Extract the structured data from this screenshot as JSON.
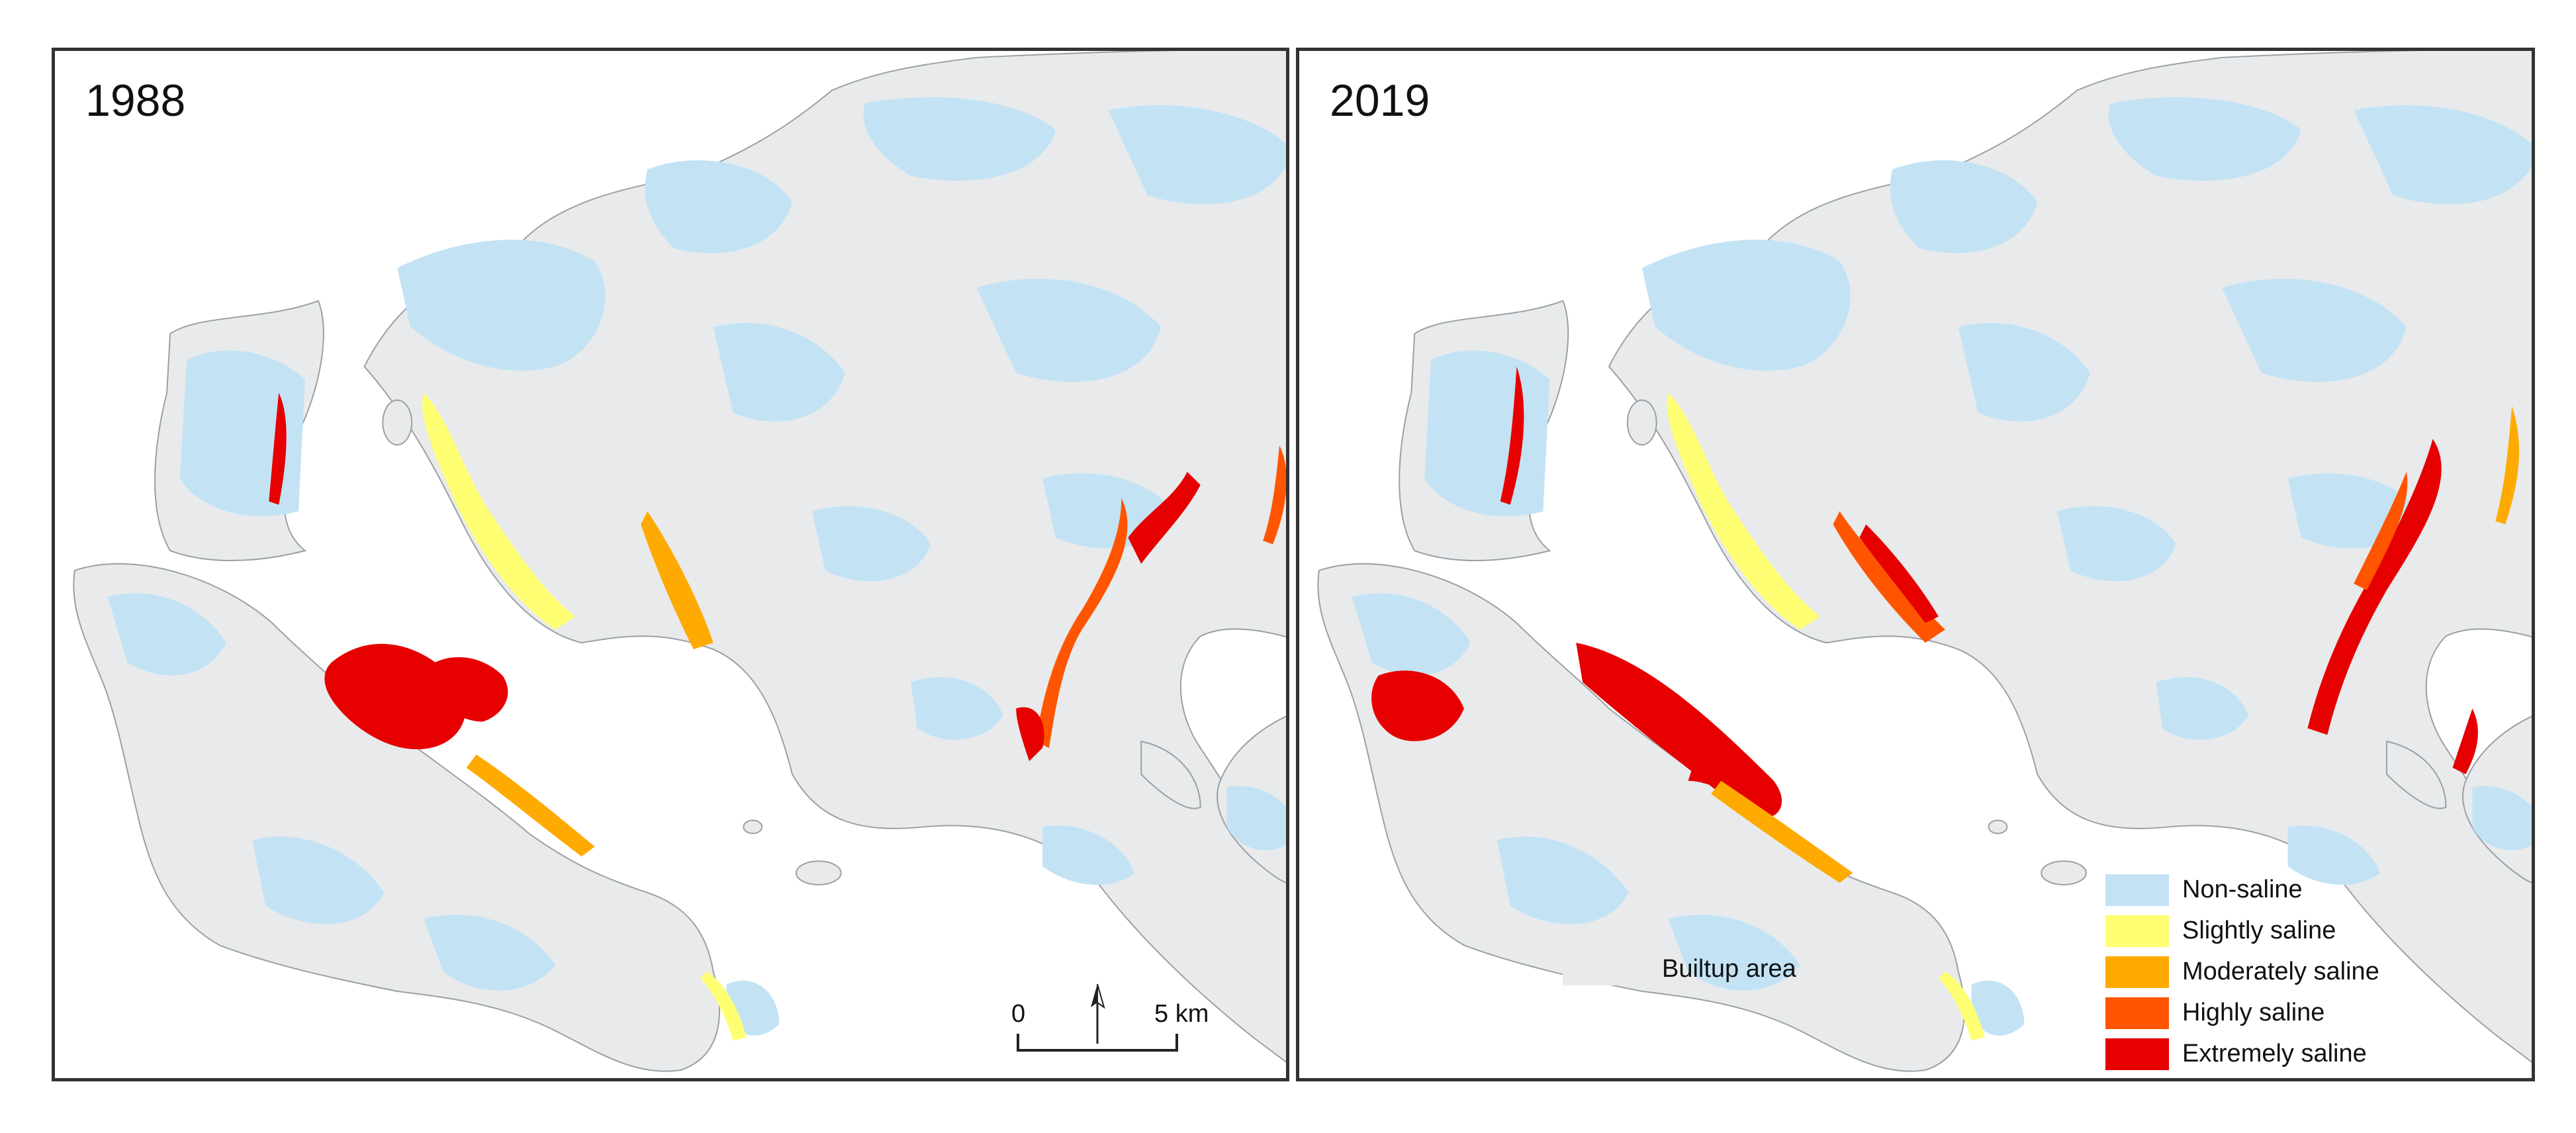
{
  "panels": [
    {
      "year": "1988",
      "scale": {
        "start": "0",
        "end": "5 km"
      }
    },
    {
      "year": "2019"
    }
  ],
  "legend": {
    "classes": [
      {
        "label": "Non-saline",
        "color": "#c3e3f5"
      },
      {
        "label": "Slightly saline",
        "color": "#ffff73"
      },
      {
        "label": "Moderately saline",
        "color": "#ffaa00"
      },
      {
        "label": "Highly saline",
        "color": "#ff5500"
      },
      {
        "label": "Extremely saline",
        "color": "#e60000"
      }
    ],
    "builtup": {
      "label": "Builtup area",
      "color": "#e8eaeb"
    }
  },
  "colors": {
    "land": "#e8eaeb",
    "water": "#ffffff",
    "border": "#333333"
  }
}
